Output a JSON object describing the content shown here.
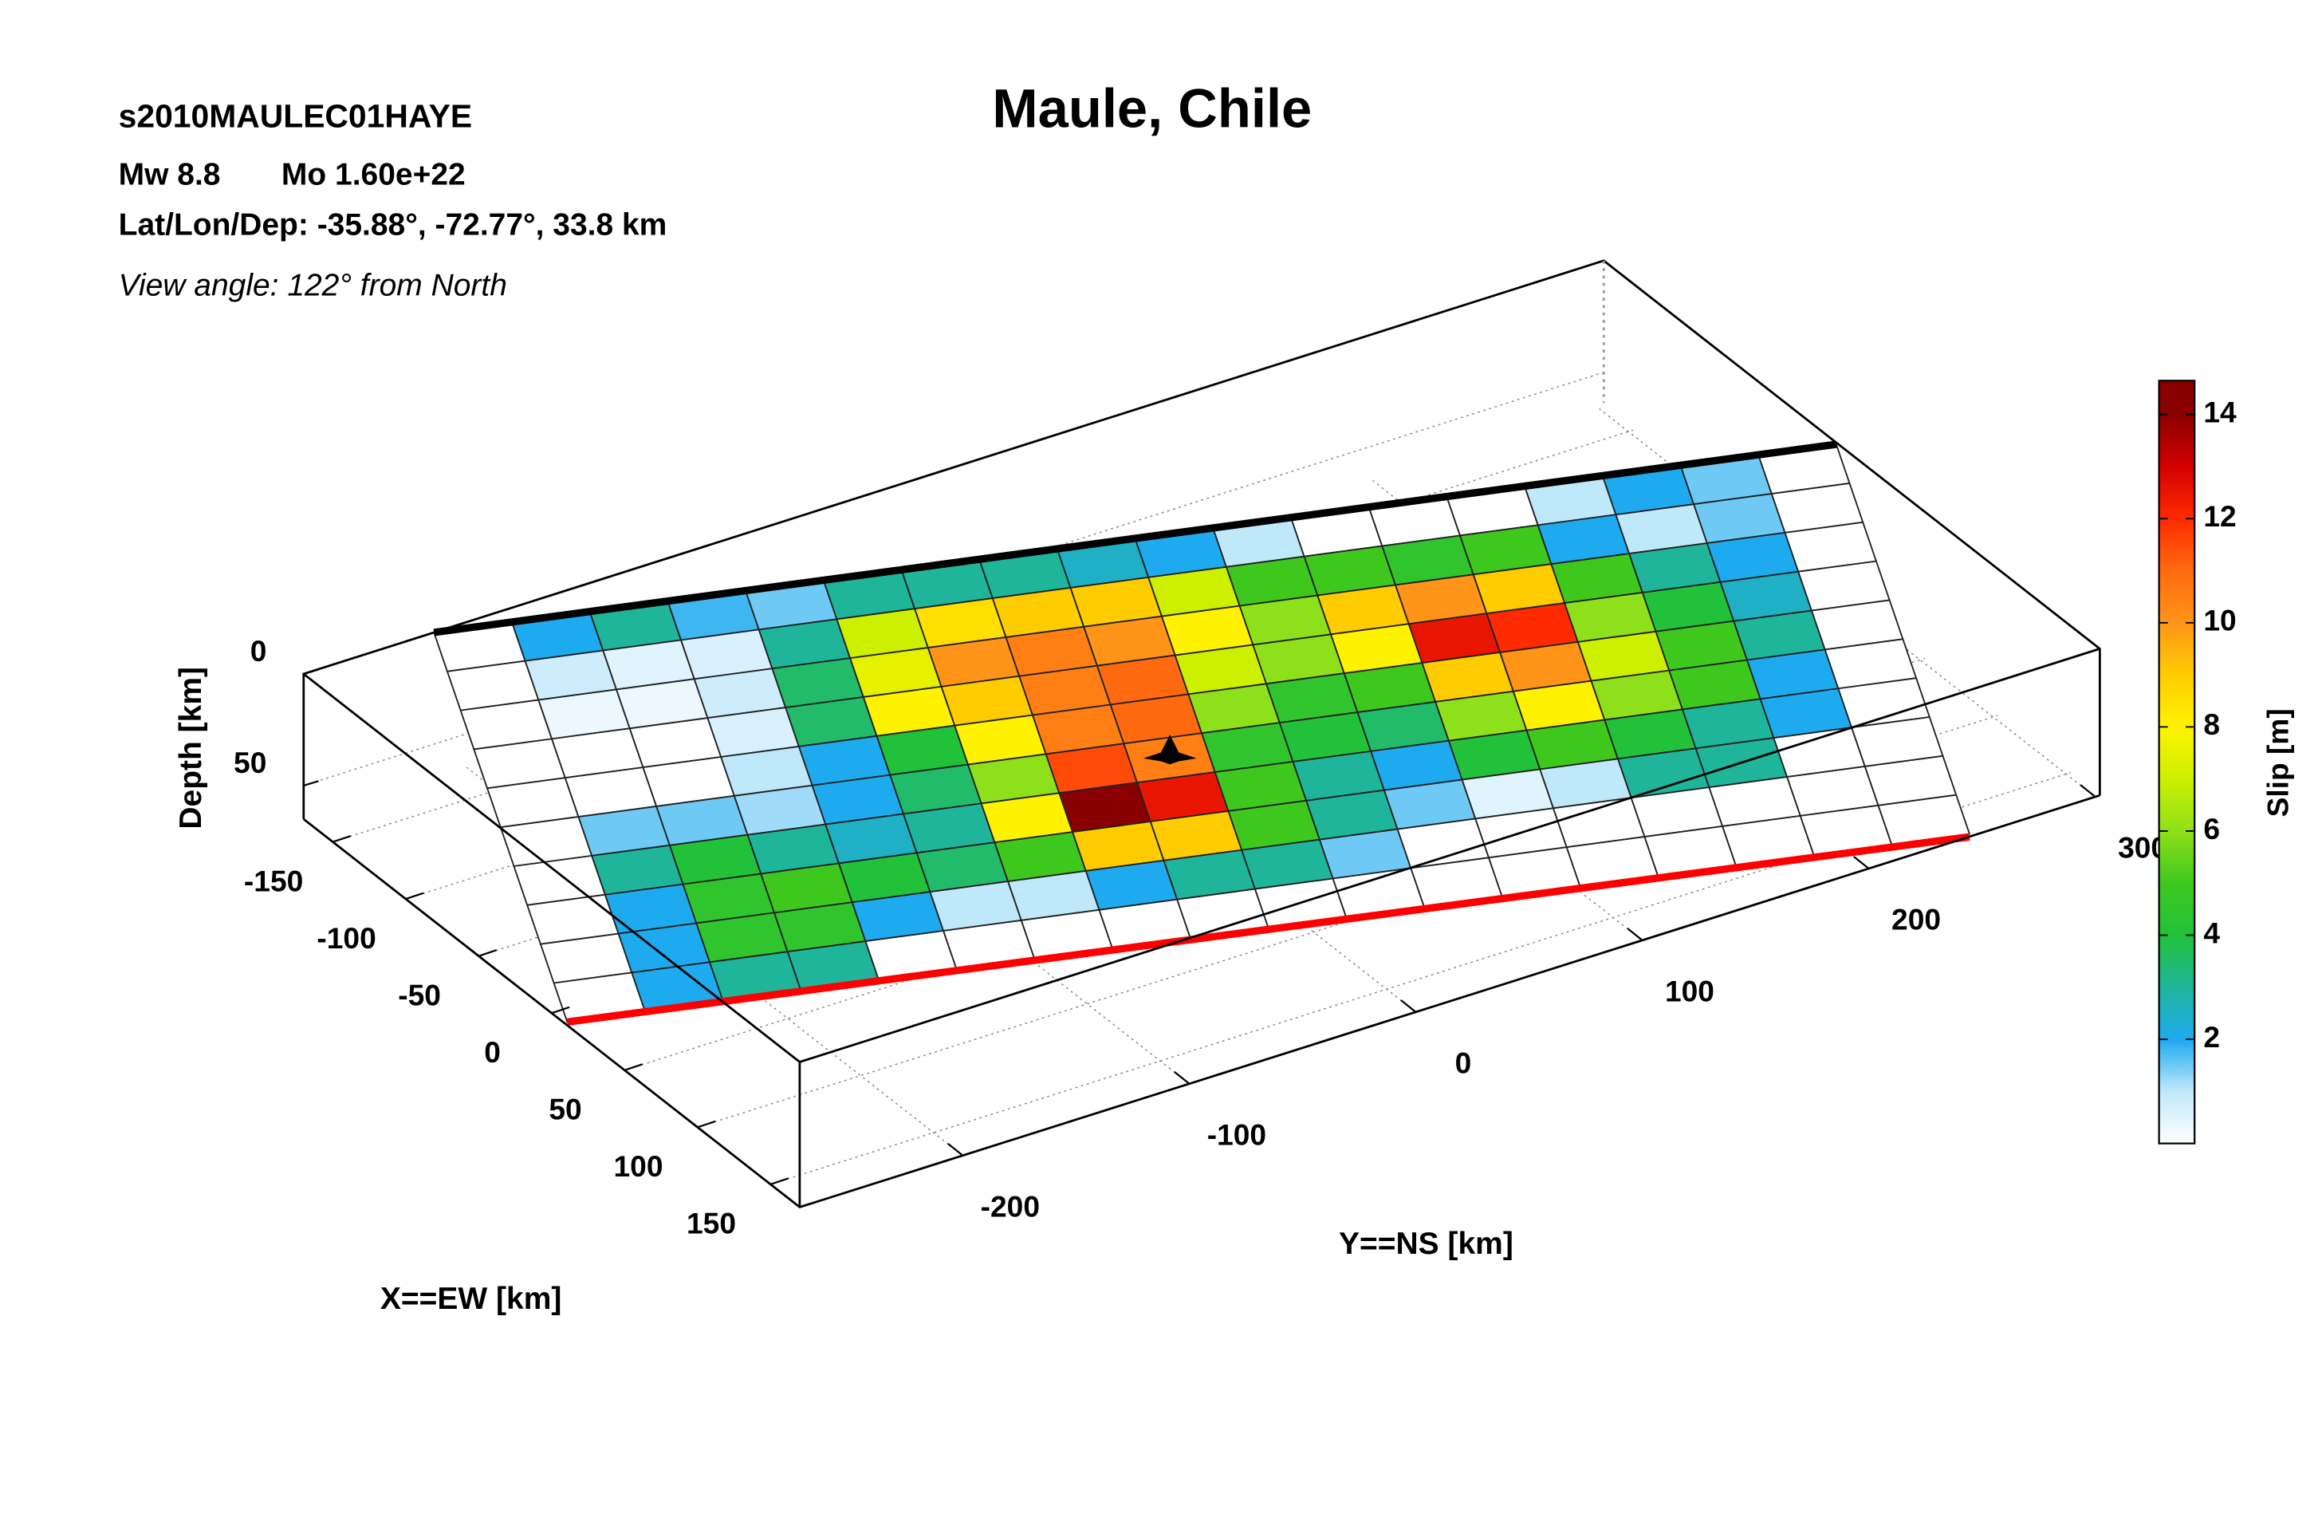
{
  "chart_data": {
    "type": "fault-slip-3d",
    "title": "Maule, Chile",
    "event_id": "s2010MAULEC01HAYE",
    "magnitude": "Mw 8.8",
    "moment": "Mo 1.60e+22",
    "location": "Lat/Lon/Dep: -35.88°, -72.77°, 33.8 km",
    "view": "View angle: 122° from North",
    "xlabel": "X==EW [km]",
    "ylabel": "Y==NS [km]",
    "zlabel": "Depth [km]",
    "colorbar_label": "Slip [m]",
    "xlim": [
      -170,
      170
    ],
    "xticks": [
      -150,
      -100,
      -50,
      0,
      50,
      100,
      150
    ],
    "ylim": [
      -272,
      302
    ],
    "yticks": [
      -200,
      -100,
      0,
      100,
      200,
      300
    ],
    "zlim": [
      0,
      65
    ],
    "zticks": [
      0,
      50
    ],
    "clim": [
      0,
      14.65
    ],
    "cticks": [
      2,
      4,
      6,
      8,
      10,
      12,
      14
    ],
    "colorscale": {
      "values": [
        0,
        1,
        2,
        3,
        4,
        5,
        6,
        7,
        8,
        9,
        10,
        11,
        12,
        13,
        14
      ],
      "colors": [
        "#ffffff",
        "#c0e8fb",
        "#1eaaef",
        "#1fb59a",
        "#22c13a",
        "#3ec81e",
        "#8ee01a",
        "#cdf000",
        "#fff200",
        "#ffcc00",
        "#ff9418",
        "#ff6a10",
        "#ff2a00",
        "#d40000",
        "#8a0000"
      ]
    },
    "grid": true,
    "slip": [
      [
        0,
        2,
        3,
        1.8,
        1.5,
        3,
        3,
        3,
        2.5,
        2,
        1,
        0,
        0,
        0,
        1,
        2,
        1.5,
        0
      ],
      [
        0,
        0.8,
        0.5,
        0.6,
        3,
        7,
        8.5,
        9,
        9,
        7,
        5,
        5,
        4.5,
        5,
        2,
        1,
        1.5,
        0
      ],
      [
        0,
        0.3,
        0.3,
        0.8,
        3.5,
        7.5,
        10,
        10.5,
        10,
        8,
        6,
        9,
        10,
        9,
        5,
        3,
        2,
        0
      ],
      [
        0,
        0,
        0,
        0.6,
        3.5,
        8,
        9,
        10.5,
        11,
        7,
        6,
        8,
        12.5,
        12,
        6,
        4,
        2.5,
        0
      ],
      [
        0,
        0,
        0,
        1,
        2,
        4,
        8,
        10.5,
        11,
        6,
        4.5,
        5,
        9,
        10,
        7,
        5,
        3,
        0
      ],
      [
        0,
        1.5,
        1.5,
        1.2,
        2,
        3.5,
        6,
        11.5,
        10.5,
        4.5,
        4,
        3.5,
        6,
        8,
        6,
        5,
        2,
        0
      ],
      [
        0,
        3,
        4,
        3,
        2.5,
        3,
        8,
        14,
        12.5,
        5,
        3,
        2,
        4,
        5,
        4,
        3,
        2,
        0
      ],
      [
        0,
        2,
        4.5,
        5,
        4,
        3.5,
        5,
        9,
        9,
        5,
        3,
        1.5,
        0.5,
        1,
        3,
        3,
        0,
        0
      ],
      [
        0,
        2,
        4.5,
        4.5,
        2,
        1,
        1,
        2,
        3,
        3,
        1.5,
        0,
        0,
        0,
        0,
        0,
        0,
        0
      ],
      [
        0,
        2,
        3,
        3,
        0,
        0,
        0,
        0,
        0,
        0,
        0,
        0,
        0,
        0,
        0,
        0,
        0,
        0
      ]
    ]
  }
}
